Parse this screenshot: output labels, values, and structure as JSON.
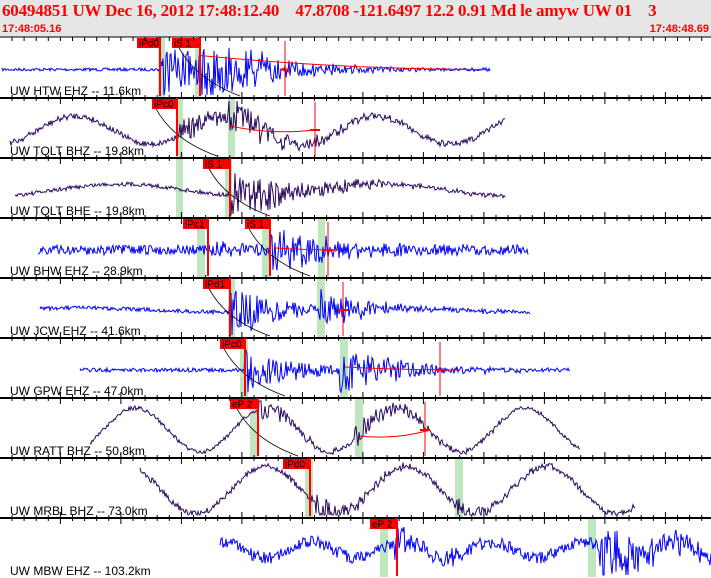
{
  "header": {
    "title": "60494851 UW Dec 16, 2012 17:48:12.40    47.8708 -121.6497 12.2 0.91 Md le amyw UW 01    3",
    "start_time": "17:48:05.16",
    "end_time": "17:48:48.69"
  },
  "colors": {
    "header_text": "#ff0000",
    "header_bg": "#e6e6e6",
    "trace_vertical": "#0000ff",
    "trace_broadband": "#2a0a60",
    "pick": "#ff0000",
    "window": "#bfe6bf"
  },
  "channels": [
    {
      "label": "UW HTW EHZ -- 11.6km",
      "picks": [
        "iPd0",
        "iS 1"
      ]
    },
    {
      "label": "UW TQLT BHZ -- 19.8km",
      "picks": [
        "iPc0"
      ]
    },
    {
      "label": "UW TQLT BHE -- 19.8km",
      "picks": [
        "iS 1"
      ]
    },
    {
      "label": "UW BHW EHZ -- 28.9km",
      "picks": [
        "iPc1",
        "iS 1"
      ]
    },
    {
      "label": "UW JCW EHZ -- 41.6km",
      "picks": [
        "iPd1"
      ]
    },
    {
      "label": "UW GPW EHZ -- 47.0km",
      "picks": [
        "iPc0"
      ]
    },
    {
      "label": "UW RATT BHZ -- 50.8km",
      "picks": [
        "eP 2"
      ]
    },
    {
      "label": "UW MRBL BHZ -- 73.0km",
      "picks": [
        "iPd0"
      ]
    },
    {
      "label": "UW MBW EHZ -- 103.2km",
      "picks": [
        "eP 2"
      ]
    }
  ]
}
